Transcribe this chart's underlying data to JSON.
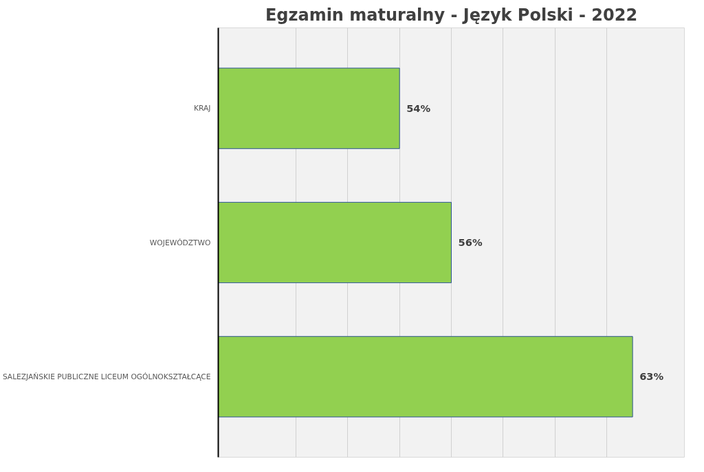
{
  "chart_data": {
    "type": "bar",
    "orientation": "horizontal",
    "title": "Egzamin maturalny - Język Polski - 2022",
    "categories": [
      "KRAJ",
      "WOJEWÓDZTWO",
      "SALEZJAŃSKIE PUBLICZNE LICEUM OGÓLNOKSZTAŁCĄCE"
    ],
    "values": [
      54,
      56,
      63
    ],
    "color": "#92d050",
    "value_labels": [
      "54%",
      "56%",
      "63%"
    ],
    "xlim": [
      47,
      65
    ],
    "xticks": [
      {
        "value": 50,
        "label": null
      },
      {
        "value": 52,
        "label": null
      },
      {
        "value": 54,
        "label": null
      },
      {
        "value": 56,
        "label": null
      },
      {
        "value": 58,
        "label": null
      },
      {
        "value": 60,
        "label": null
      },
      {
        "value": 62,
        "label": null
      }
    ],
    "tick_labels": "y",
    "grid": "x"
  }
}
